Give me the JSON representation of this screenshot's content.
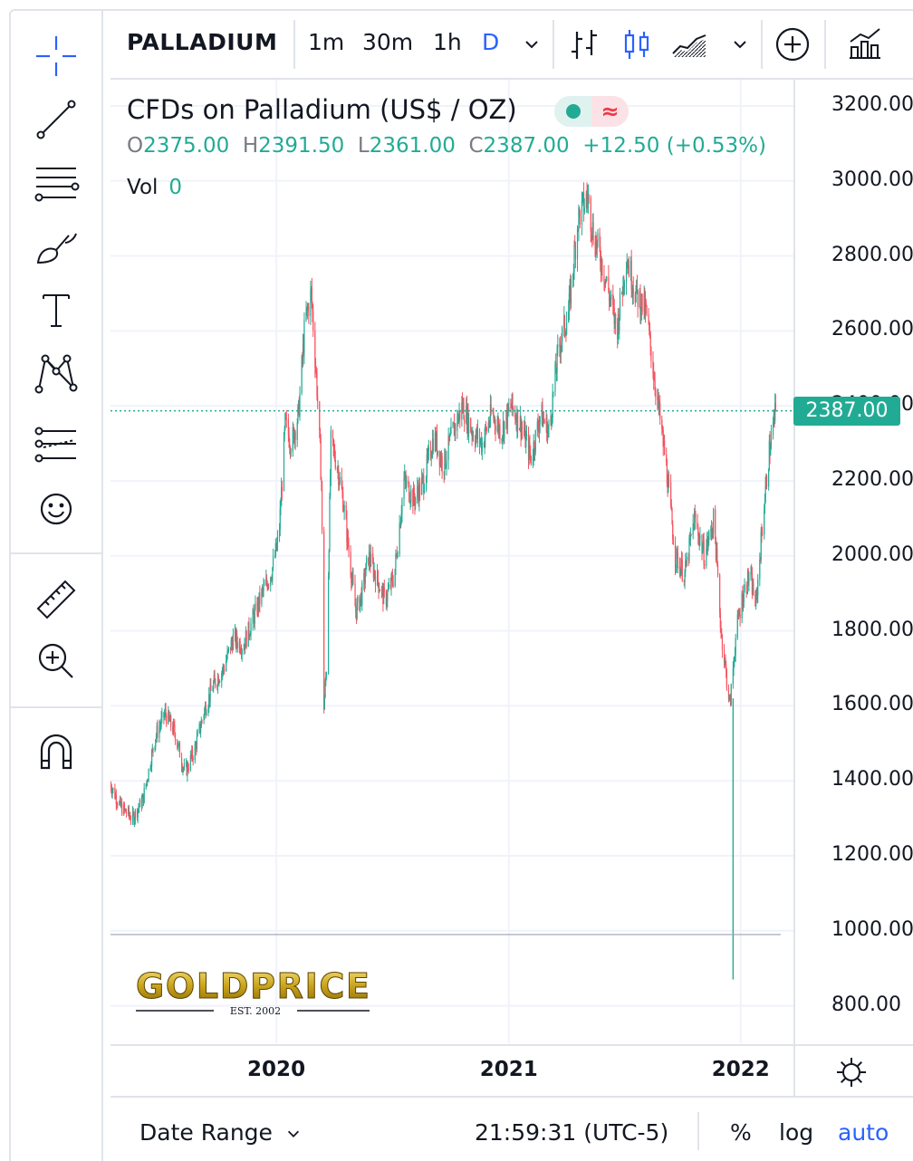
{
  "header": {
    "symbol": "PALLADIUM",
    "timeframes": [
      "1m",
      "30m",
      "1h",
      "D"
    ],
    "active_timeframe": "D"
  },
  "legend": {
    "title": "CFDs on Palladium (US$ / OZ)",
    "badge_symbol": "≈",
    "o_key": "O",
    "o_val": "2375.00",
    "h_key": "H",
    "h_val": "2391.50",
    "l_key": "L",
    "l_val": "2361.00",
    "c_key": "C",
    "c_val": "2387.00",
    "change": "+12.50 (+0.53%)",
    "vol_label": "Vol",
    "vol_val": "0"
  },
  "current_price_tag": "2387.00",
  "logo": {
    "text": "GOLDPRICE",
    "est": "EST. 2002"
  },
  "footer": {
    "date_range": "Date Range",
    "clock": "21:59:31 (UTC-5)",
    "percent": "%",
    "log": "log",
    "auto": "auto"
  },
  "colors": {
    "up": "#22ab94",
    "down": "#f7525f",
    "accent": "#2962ff",
    "grid": "#f0f3fa"
  },
  "icons": [
    "crosshair-icon",
    "trend-line-icon",
    "fib-icon",
    "brush-icon",
    "text-icon",
    "pattern-icon",
    "forecast-icon",
    "emoji-icon",
    "ruler-icon",
    "zoom-in-icon",
    "magnet-icon",
    "bar-style-icon",
    "candle-style-icon",
    "area-style-icon",
    "chevron-down-icon",
    "add-compare-icon",
    "indicators-icon",
    "settings-gear-icon"
  ],
  "chart_data": {
    "type": "candlestick",
    "title": "CFDs on Palladium (US$ / OZ)",
    "y_ticks": [
      "3200.00",
      "3000.00",
      "2800.00",
      "2600.00",
      "2400.00",
      "2200.00",
      "2000.00",
      "1800.00",
      "1600.00",
      "1400.00",
      "1200.00",
      "1000.00",
      "800.00"
    ],
    "y_tick_values": [
      3200,
      3000,
      2800,
      2600,
      2400,
      2200,
      2000,
      1800,
      1600,
      1400,
      1200,
      1000,
      800
    ],
    "x_ticks": [
      "2020",
      "2021",
      "2022"
    ],
    "x_tick_dates": [
      "2020-01-01",
      "2021-01-01",
      "2022-01-01"
    ],
    "ylim": [
      700,
      3270
    ],
    "xlim": [
      "2019-04-15",
      "2022-03-25"
    ],
    "last_close": 2387.0,
    "reference_line": 990,
    "series": [
      {
        "points": [
          [
            "2019-04-15",
            1390
          ],
          [
            "2019-05-01",
            1330
          ],
          [
            "2019-05-20",
            1300
          ],
          [
            "2019-06-05",
            1350
          ],
          [
            "2019-06-25",
            1520
          ],
          [
            "2019-07-10",
            1580
          ],
          [
            "2019-07-25",
            1530
          ],
          [
            "2019-08-10",
            1420
          ],
          [
            "2019-08-25",
            1480
          ],
          [
            "2019-09-10",
            1590
          ],
          [
            "2019-09-25",
            1660
          ],
          [
            "2019-10-10",
            1700
          ],
          [
            "2019-10-25",
            1780
          ],
          [
            "2019-11-10",
            1760
          ],
          [
            "2019-11-25",
            1830
          ],
          [
            "2019-12-10",
            1900
          ],
          [
            "2019-12-25",
            1960
          ],
          [
            "2020-01-05",
            2050
          ],
          [
            "2020-01-15",
            2350
          ],
          [
            "2020-01-25",
            2300
          ],
          [
            "2020-02-05",
            2380
          ],
          [
            "2020-02-15",
            2620
          ],
          [
            "2020-02-25",
            2700
          ],
          [
            "2020-03-05",
            2450
          ],
          [
            "2020-03-12",
            2200
          ],
          [
            "2020-03-16",
            1600
          ],
          [
            "2020-03-20",
            1700
          ],
          [
            "2020-03-27",
            2300
          ],
          [
            "2020-04-05",
            2250
          ],
          [
            "2020-04-15",
            2150
          ],
          [
            "2020-04-25",
            2000
          ],
          [
            "2020-05-05",
            1850
          ],
          [
            "2020-05-15",
            1900
          ],
          [
            "2020-05-25",
            2000
          ],
          [
            "2020-06-05",
            1950
          ],
          [
            "2020-06-20",
            1880
          ],
          [
            "2020-07-05",
            1950
          ],
          [
            "2020-07-20",
            2200
          ],
          [
            "2020-08-05",
            2150
          ],
          [
            "2020-08-20",
            2200
          ],
          [
            "2020-09-05",
            2320
          ],
          [
            "2020-09-20",
            2240
          ],
          [
            "2020-10-05",
            2330
          ],
          [
            "2020-10-20",
            2400
          ],
          [
            "2020-11-05",
            2330
          ],
          [
            "2020-11-20",
            2300
          ],
          [
            "2020-12-05",
            2380
          ],
          [
            "2020-12-20",
            2330
          ],
          [
            "2021-01-05",
            2400
          ],
          [
            "2021-01-20",
            2350
          ],
          [
            "2021-02-05",
            2260
          ],
          [
            "2021-02-20",
            2380
          ],
          [
            "2021-03-05",
            2330
          ],
          [
            "2021-03-20",
            2550
          ],
          [
            "2021-04-05",
            2650
          ],
          [
            "2021-04-20",
            2900
          ],
          [
            "2021-05-05",
            2960
          ],
          [
            "2021-05-15",
            2850
          ],
          [
            "2021-05-25",
            2800
          ],
          [
            "2021-06-05",
            2720
          ],
          [
            "2021-06-20",
            2600
          ],
          [
            "2021-07-05",
            2800
          ],
          [
            "2021-07-20",
            2700
          ],
          [
            "2021-08-05",
            2650
          ],
          [
            "2021-08-20",
            2450
          ],
          [
            "2021-09-05",
            2250
          ],
          [
            "2021-09-20",
            2000
          ],
          [
            "2021-10-05",
            1950
          ],
          [
            "2021-10-20",
            2100
          ],
          [
            "2021-11-05",
            2000
          ],
          [
            "2021-11-20",
            2100
          ],
          [
            "2021-12-01",
            1800
          ],
          [
            "2021-12-15",
            1600
          ],
          [
            "2021-12-25",
            1800
          ],
          [
            "2022-01-05",
            1900
          ],
          [
            "2022-01-15",
            1950
          ],
          [
            "2022-01-25",
            1870
          ],
          [
            "2022-02-05",
            2100
          ],
          [
            "2022-02-15",
            2280
          ],
          [
            "2022-02-25",
            2387
          ]
        ]
      }
    ]
  }
}
